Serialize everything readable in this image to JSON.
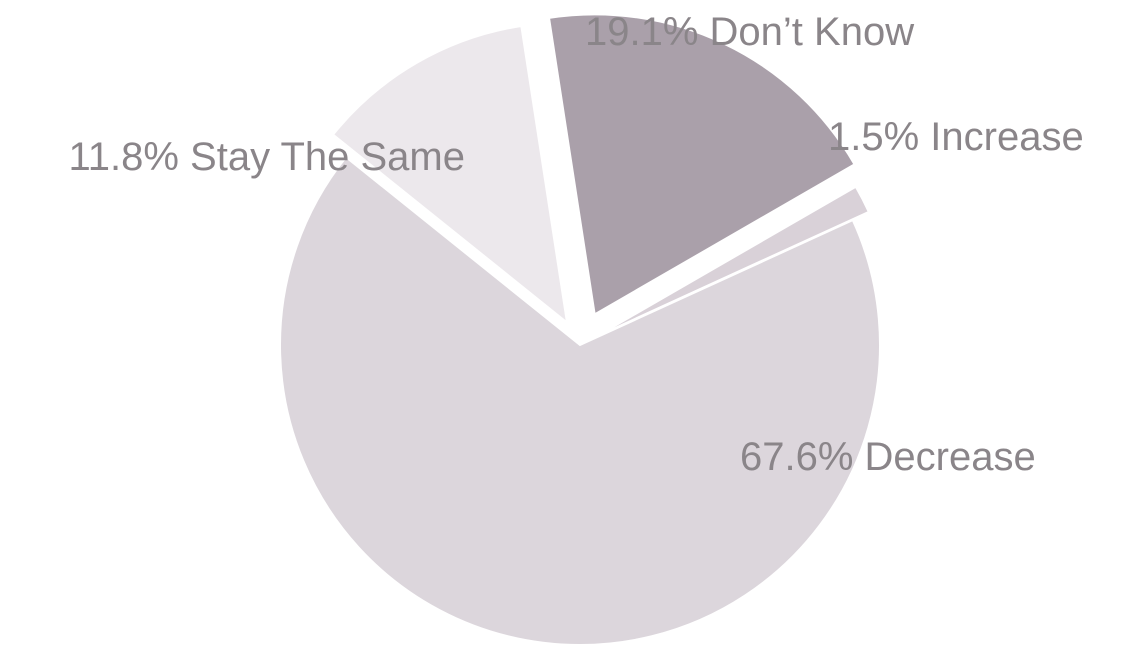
{
  "chart_data": {
    "type": "pie",
    "title": "",
    "slices": [
      {
        "label": "1.5% Increase",
        "value": 1.5,
        "color": "#d9d1d8"
      },
      {
        "label": "67.6% Decrease",
        "value": 67.6,
        "color": "#dcd6dc"
      },
      {
        "label": "11.8% Stay The Same",
        "value": 11.8,
        "color": "#ece8ec"
      },
      {
        "label": "19.1% Don’t Know",
        "value": 19.1,
        "color": "#aaa0aa"
      }
    ],
    "start_angle_deg": 60,
    "direction": "clockwise",
    "exploded": true
  }
}
